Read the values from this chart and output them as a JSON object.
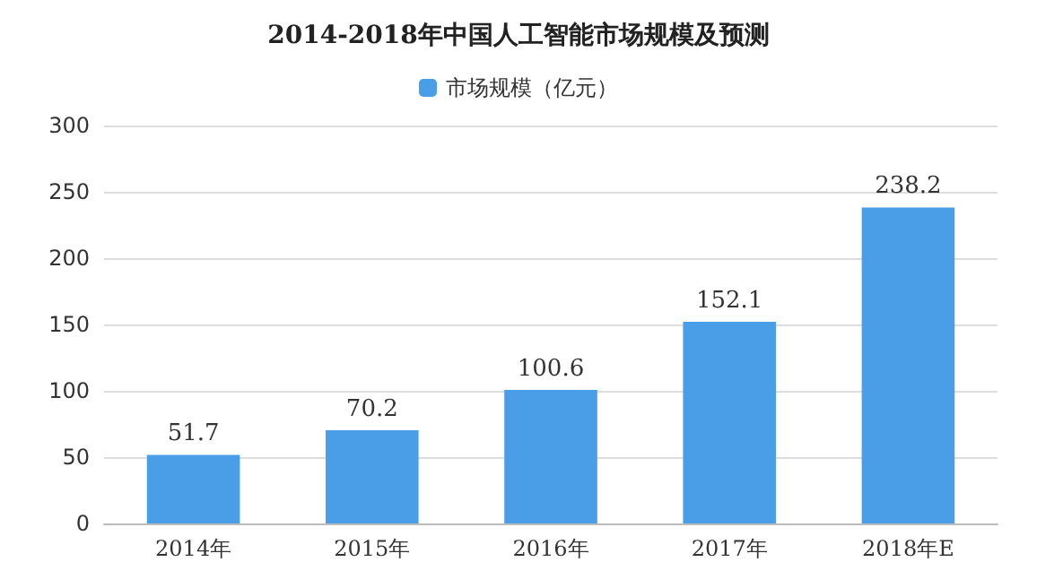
{
  "chart_data": {
    "type": "bar",
    "title": "2014-2018年中国人工智能市场规模及预测",
    "categories": [
      "2014年",
      "2015年",
      "2016年",
      "2017年",
      "2018年E"
    ],
    "series": [
      {
        "name": "市场规模（亿元）",
        "color": "#4a9ee8",
        "values": [
          51.7,
          70.2,
          100.6,
          152.1,
          238.2
        ]
      }
    ],
    "ylim": [
      0,
      300
    ],
    "yticks": [
      0,
      50,
      100,
      150,
      200,
      250,
      300
    ],
    "grid": "y",
    "legend": "top",
    "data_labels": true
  }
}
